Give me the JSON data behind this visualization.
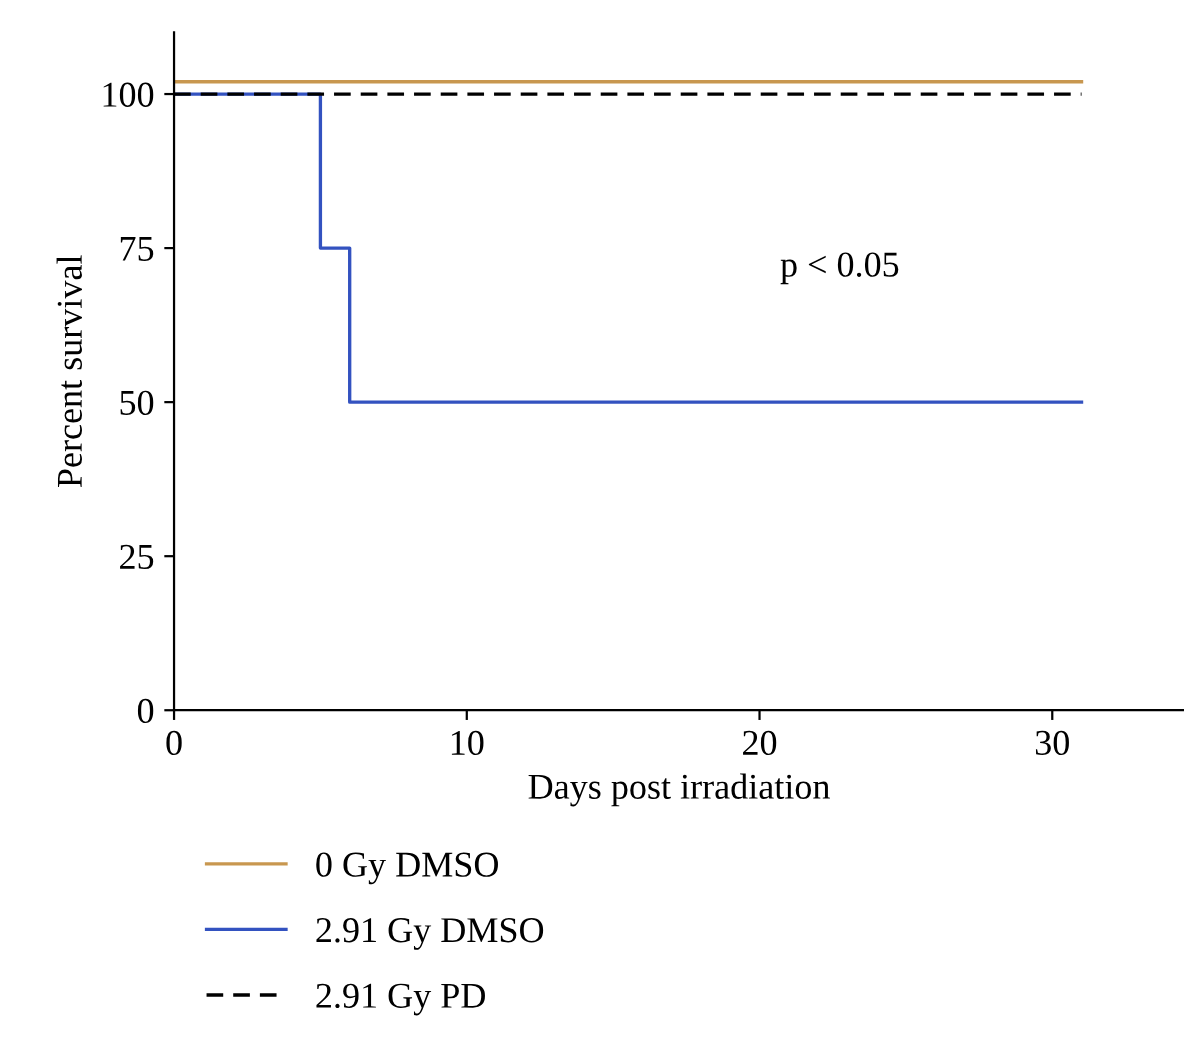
{
  "chart_data": {
    "type": "step",
    "xlabel": "Days post irradiation",
    "ylabel": "Percent survival",
    "annotations": [
      "p < 0.05"
    ],
    "xlim": [
      0,
      34.5
    ],
    "xticks": [
      0,
      10,
      20,
      30
    ],
    "ylim": [
      0,
      110
    ],
    "yticks": [
      0,
      25,
      50,
      75,
      100
    ],
    "grid": false,
    "legend": "bottom",
    "series": [
      {
        "name": "0 Gy DMSO",
        "color": "#c8974f",
        "x": [
          0,
          31
        ],
        "values": [
          102,
          102
        ],
        "line_style": "solid"
      },
      {
        "name": "2.91 Gy DMSO",
        "color": "#3352c0",
        "x": [
          0,
          5,
          6,
          31
        ],
        "values": [
          100,
          75,
          50,
          50
        ],
        "line_style": "solid"
      },
      {
        "name": "2.91 Gy PD",
        "color": "#000000",
        "x": [
          0,
          31
        ],
        "values": [
          100,
          100
        ],
        "line_style": "dashed"
      }
    ]
  }
}
